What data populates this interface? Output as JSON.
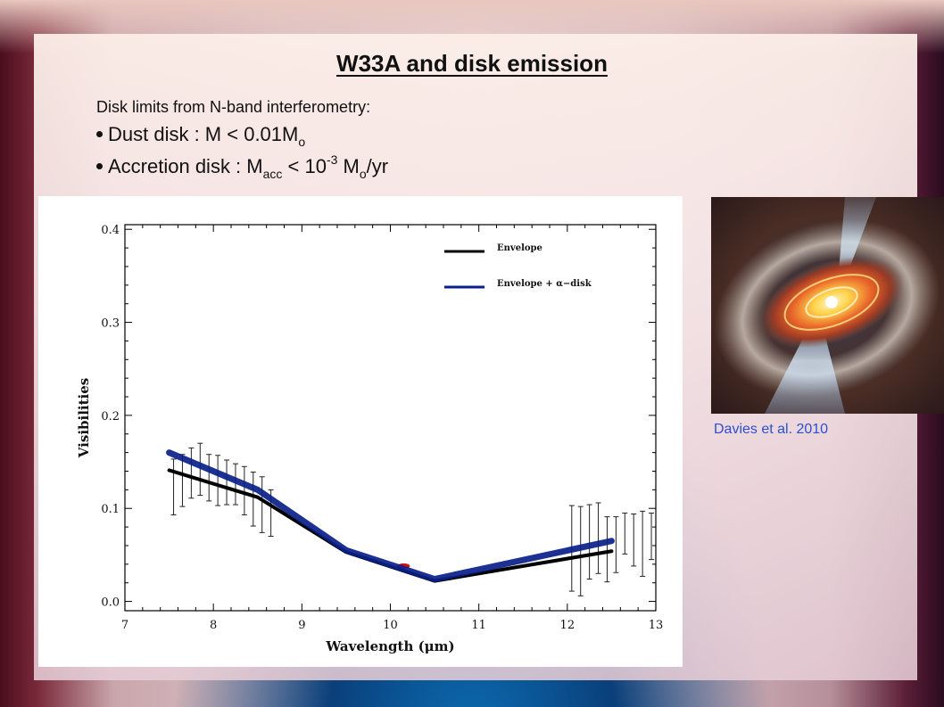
{
  "slide": {
    "title": "W33A and disk emission",
    "intro": "Disk limits from N-band interferometry:",
    "bullet1": {
      "prefix": "Dust disk : M < 0.01M",
      "sub": "o",
      "suffix": ""
    },
    "bullet2": {
      "prefix": "Accretion disk :  M",
      "sub1": "acc",
      "mid": " < 10",
      "sup": "-3",
      "mid2": " M",
      "sub2": "o",
      "suffix": "/yr"
    },
    "caption": "Davies et al. 2010"
  },
  "colors": {
    "envelope": "#000000",
    "disk": "#0a1f8a",
    "red_marker": "#cc1111",
    "caption": "#2b4fd0"
  },
  "image": {
    "name": "accretion-disk-artwork",
    "description_icon": "disk-illustration-icon"
  },
  "chart_data": {
    "type": "line",
    "xlabel": "Wavelength (μm)",
    "ylabel": "Visibilities",
    "xlim": [
      7,
      13
    ],
    "ylim": [
      -0.01,
      0.405
    ],
    "xticks": [
      "7",
      "8",
      "9",
      "10",
      "11",
      "12",
      "13"
    ],
    "yticks": [
      "0.0",
      "0.1",
      "0.2",
      "0.3",
      "0.4"
    ],
    "series": [
      {
        "name": "Envelope",
        "x": [
          7.5,
          8.5,
          9.5,
          10.5,
          12.5
        ],
        "values": [
          0.141,
          0.112,
          0.053,
          0.022,
          0.054
        ]
      },
      {
        "name": "Envelope + α−disk",
        "x": [
          7.5,
          8.5,
          9.5,
          10.5,
          12.5
        ],
        "values": [
          0.16,
          0.12,
          0.055,
          0.024,
          0.065
        ]
      }
    ],
    "data_points": {
      "x": [
        7.55,
        7.65,
        7.75,
        7.85,
        7.95,
        8.05,
        8.15,
        8.25,
        8.35,
        8.45,
        8.55,
        8.65,
        12.05,
        12.15,
        12.25,
        12.35,
        12.45,
        12.55,
        12.65,
        12.75,
        12.85,
        12.95
      ],
      "y": [
        0.123,
        0.13,
        0.138,
        0.142,
        0.133,
        0.13,
        0.128,
        0.126,
        0.119,
        0.11,
        0.104,
        0.095,
        0.057,
        0.054,
        0.064,
        0.068,
        0.056,
        0.061,
        0.073,
        0.066,
        0.062,
        0.07
      ],
      "err": [
        0.03,
        0.028,
        0.027,
        0.028,
        0.025,
        0.027,
        0.024,
        0.022,
        0.026,
        0.029,
        0.03,
        0.025,
        0.046,
        0.048,
        0.04,
        0.038,
        0.035,
        0.03,
        0.022,
        0.028,
        0.035,
        0.025
      ]
    },
    "legend": [
      "Envelope",
      "Envelope + α−disk"
    ],
    "legend_position": "top-right"
  }
}
